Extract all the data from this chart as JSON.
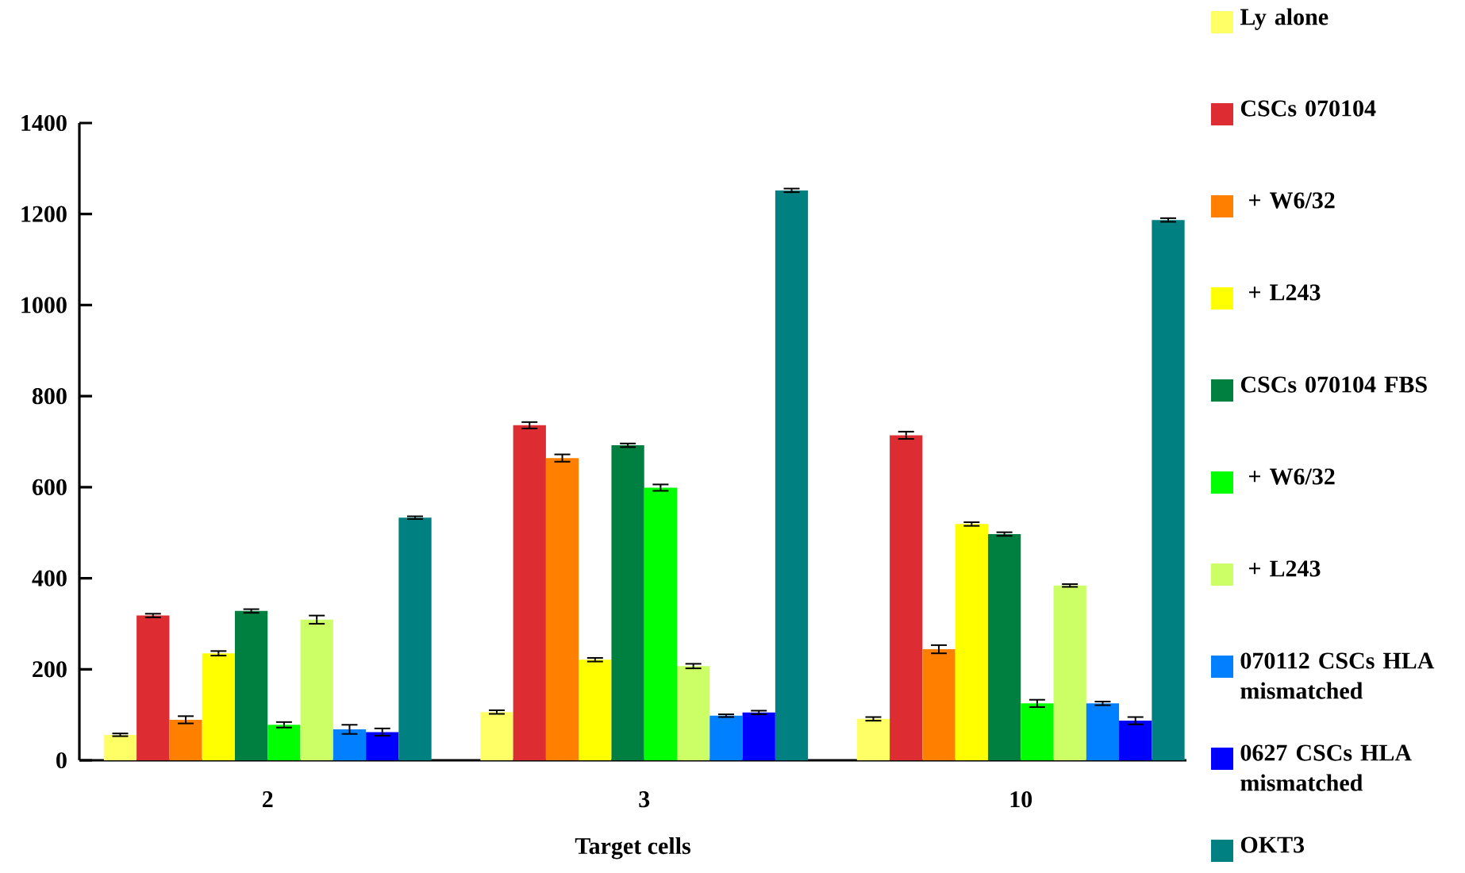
{
  "chart_data": {
    "type": "bar",
    "xlabel": "Target cells",
    "categories": [
      "2",
      "3",
      "10"
    ],
    "ylim": [
      0,
      1400
    ],
    "yticks": [
      0,
      200,
      400,
      600,
      800,
      1000,
      1200,
      1400
    ],
    "grid": false,
    "legend": "right",
    "series": [
      {
        "name": "Ly alone",
        "color": "#ffff66",
        "values": [
          56,
          106,
          91
        ],
        "errors": [
          3,
          4,
          4
        ]
      },
      {
        "name": "CSCs 070104",
        "color": "#dd2c32",
        "values": [
          318,
          736,
          714
        ],
        "errors": [
          4,
          7,
          8
        ]
      },
      {
        "name": " + W6/32",
        "color": "#ff8000",
        "values": [
          89,
          664,
          244
        ],
        "errors": [
          8,
          8,
          9
        ]
      },
      {
        "name": " + L243",
        "color": "#ffff00",
        "values": [
          235,
          221,
          519
        ],
        "errors": [
          5,
          4,
          4
        ]
      },
      {
        "name": "CSCs 070104 FBS",
        "color": "#008040",
        "values": [
          328,
          692,
          497
        ],
        "errors": [
          4,
          4,
          4
        ]
      },
      {
        "name": " + W6/32",
        "color": "#00ff00",
        "values": [
          78,
          599,
          125
        ],
        "errors": [
          6,
          7,
          8
        ]
      },
      {
        "name": " + L243",
        "color": "#ccff66",
        "values": [
          309,
          207,
          384
        ],
        "errors": [
          9,
          5,
          3
        ]
      },
      {
        "name": "070112 CSCs HLA mismatched",
        "color": "#0080ff",
        "values": [
          68,
          98,
          125
        ],
        "errors": [
          10,
          3,
          4
        ]
      },
      {
        "name": "0627 CSCs HLA mismatched",
        "color": "#0000ff",
        "values": [
          62,
          105,
          87
        ],
        "errors": [
          8,
          4,
          8
        ]
      },
      {
        "name": "OKT3",
        "color": "#008080",
        "values": [
          533,
          1252,
          1187
        ],
        "errors": [
          3,
          4,
          4
        ]
      }
    ]
  }
}
